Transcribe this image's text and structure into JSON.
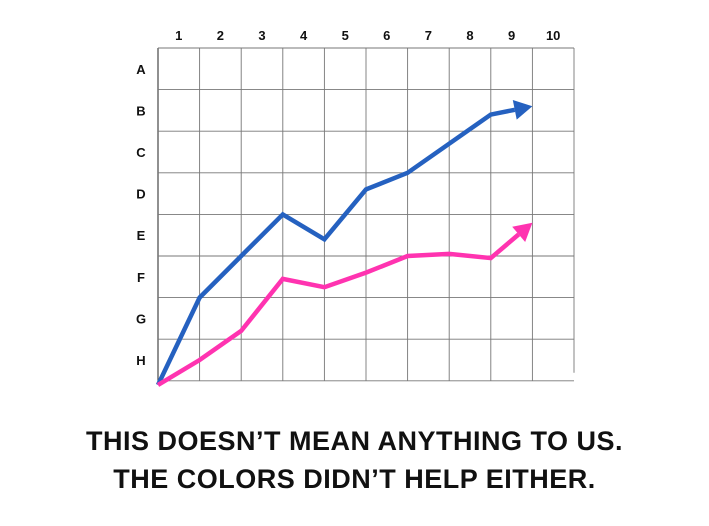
{
  "chart_data": {
    "type": "line",
    "x_ticks": [
      "1",
      "2",
      "3",
      "4",
      "5",
      "6",
      "7",
      "8",
      "9",
      "10"
    ],
    "y_ticks": [
      "A",
      "B",
      "C",
      "D",
      "E",
      "F",
      "G",
      "H"
    ],
    "grid": true,
    "series": [
      {
        "color": "#2561c0",
        "x": [
          0,
          1,
          2,
          3,
          4,
          5,
          6,
          7,
          8,
          9
        ],
        "y": [
          8.1,
          6.0,
          5.0,
          4.0,
          4.6,
          3.4,
          3.0,
          2.3,
          1.6,
          1.4
        ]
      },
      {
        "color": "#ff33b0",
        "x": [
          0,
          1,
          2,
          3,
          4,
          5,
          6,
          7,
          8,
          9
        ],
        "y": [
          8.1,
          7.5,
          6.8,
          5.55,
          5.75,
          5.4,
          5.0,
          4.95,
          5.05,
          4.2
        ]
      }
    ]
  },
  "caption": {
    "line1": "THIS DOESN’T MEAN ANYTHING TO US.",
    "line2": "THE COLORS DIDN’T HELP EITHER."
  }
}
